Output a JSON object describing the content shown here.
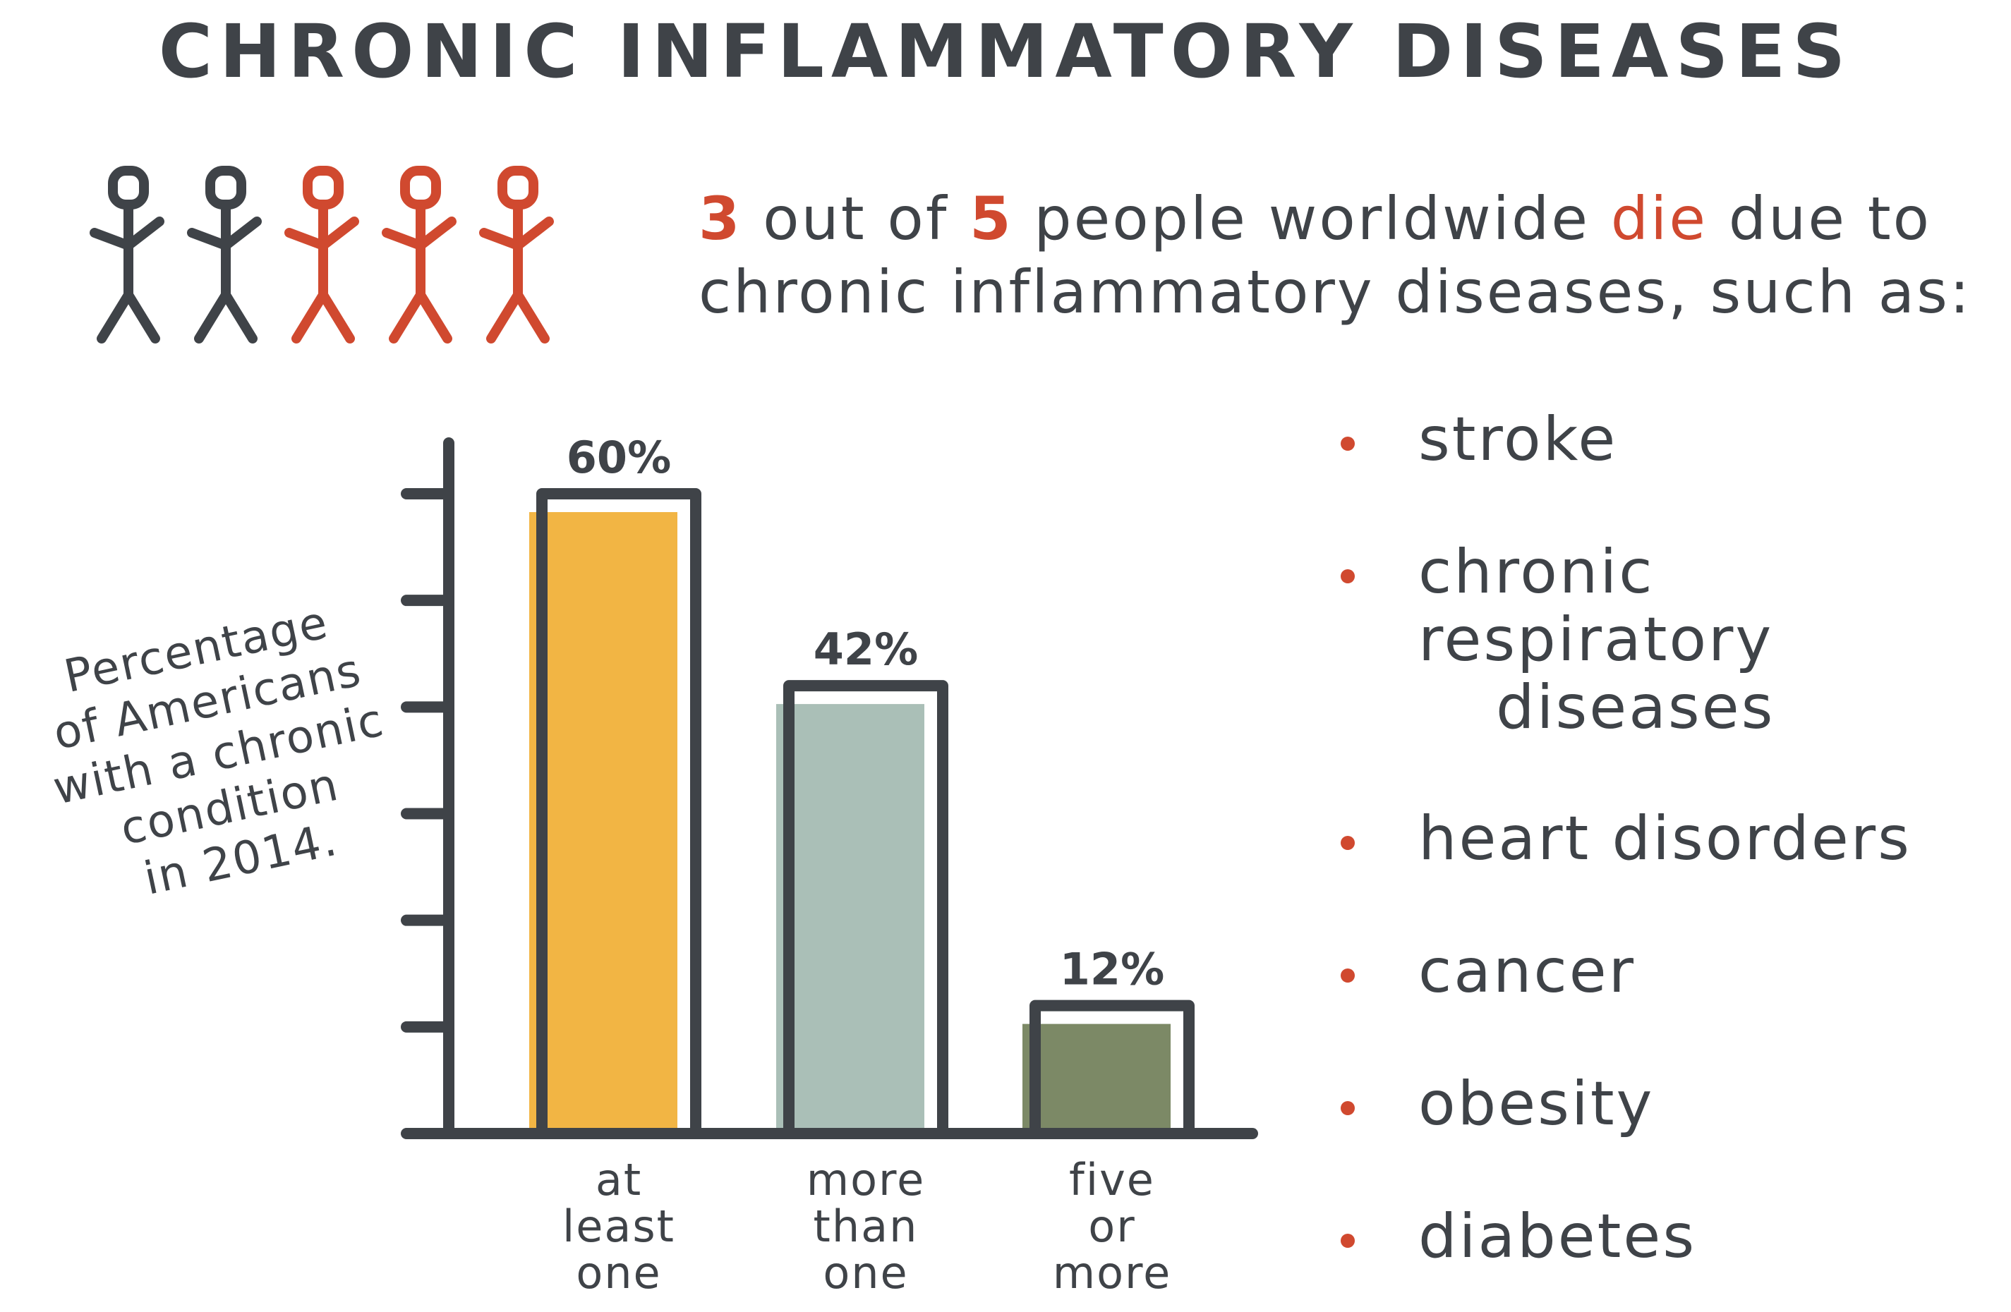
{
  "title": "CHRONIC INFLAMMATORY DISEASES",
  "people": {
    "total": 5,
    "highlighted": 3,
    "colors": {
      "normal": "#3f4348",
      "highlight": "#d0492f"
    }
  },
  "headline": {
    "num_a": "3",
    "text_a": " out of ",
    "num_b": "5",
    "text_b": " people worldwide ",
    "highlight": "die",
    "text_c": " due to",
    "line2": "chronic inflammatory diseases, such as:"
  },
  "diseases": {
    "items": [
      {
        "line1": "stroke"
      },
      {
        "line1": "chronic respiratory",
        "line2": "diseases"
      },
      {
        "line1": "heart disorders"
      },
      {
        "line1": "cancer"
      },
      {
        "line1": "obesity"
      },
      {
        "line1": "diabetes"
      }
    ]
  },
  "colors": {
    "ink": "#3f4348",
    "accent": "#d0492f",
    "bar1": "#f2b544",
    "bar2": "#aabfb7",
    "bar3": "#7c8966"
  },
  "chart_data": {
    "type": "bar",
    "ylabel_lines": [
      "Percentage",
      "of Americans",
      "with a chronic",
      "condition",
      "in 2014."
    ],
    "categories": [
      {
        "lines": [
          "at",
          "least",
          "one"
        ]
      },
      {
        "lines": [
          "more",
          "than",
          "one"
        ]
      },
      {
        "lines": [
          "five",
          "or",
          "more"
        ]
      }
    ],
    "values": [
      60,
      42,
      12
    ],
    "value_labels": [
      "60%",
      "42%",
      "12%"
    ],
    "ylim": [
      0,
      60
    ],
    "ticks": [
      10,
      20,
      30,
      40,
      50,
      60
    ],
    "grid": false
  }
}
